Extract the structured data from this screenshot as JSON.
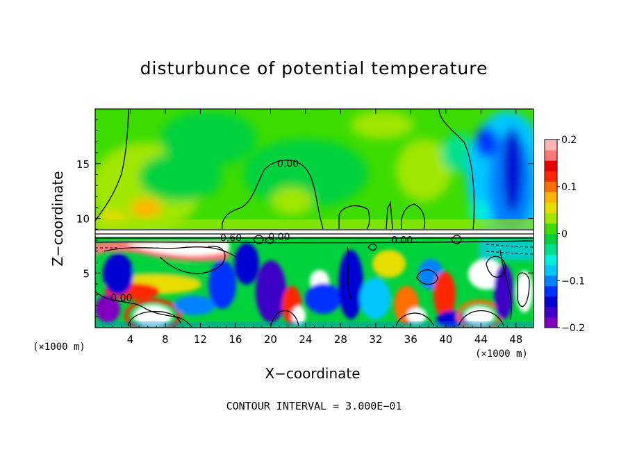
{
  "chart_data": {
    "type": "heatmap",
    "title": "disturbunce of potential temperature",
    "xlabel": "X−coordinate",
    "ylabel": "Z−coordinate",
    "x_unit": "(×1000 m)",
    "y_unit": "(×1000 m)",
    "footnote": "CONTOUR INTERVAL = 3.000E−01",
    "xlim": [
      0,
      50
    ],
    "ylim": [
      0,
      20
    ],
    "x_ticks": [
      4,
      8,
      12,
      16,
      20,
      24,
      28,
      32,
      36,
      40,
      44,
      48
    ],
    "y_ticks": [
      5,
      10,
      15
    ],
    "colorbar": {
      "min": -0.2,
      "max": 0.2,
      "ticks": [
        0.2,
        0.1,
        0,
        -0.1,
        -0.2
      ],
      "tick_labels": [
        "0.2",
        "0.1",
        "0",
        "−0.1",
        "−0.2"
      ],
      "colors": [
        "#7f00bf",
        "#3c00c8",
        "#0000d2",
        "#0032ff",
        "#0082ff",
        "#00c8ff",
        "#00f0e0",
        "#00e08c",
        "#00d23c",
        "#3cdc00",
        "#a0e600",
        "#e6dc00",
        "#ffb400",
        "#ff6e00",
        "#ff2800",
        "#e60000",
        "#ff7878",
        "#ffb4b4"
      ]
    },
    "contour_labels": [
      {
        "text": "0.00",
        "x": 22,
        "z": 14.7
      },
      {
        "text": "0.60",
        "x": 15.5,
        "z": 7.9
      },
      {
        "text": "0.00",
        "x": 21,
        "z": 8.0
      },
      {
        "text": "0.00",
        "x": 35,
        "z": 7.7
      },
      {
        "text": "0.00",
        "x": 3,
        "z": 2.4
      }
    ],
    "field_summary": {
      "upper_layer_z_above_9": "near zero (greens, about 0 to +0.1); warm patch near x=6, z=10; strong negative anomaly (down to about −0.2) near x=44–50, z=10–18",
      "inversion_layer_z_about_8_9": "tightly packed contour lines",
      "lower_layer_z_below_8": "turbulent mixture of strong positive (>0.2) and negative (<−0.2) eddies"
    }
  }
}
